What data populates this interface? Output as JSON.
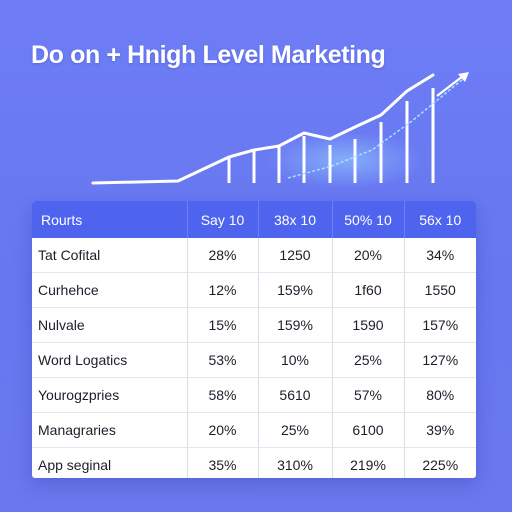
{
  "title": "Do on + Hnigh Level Marketing",
  "colors": {
    "background": "#6b7af2",
    "header": "#4e63ee",
    "line": "#ffffff"
  },
  "table": {
    "columns": [
      "Rourts",
      "Say 10",
      "38x 10",
      "50% 10",
      "56x 10"
    ],
    "rows": [
      [
        "Tat Cofital",
        "28%",
        "1250",
        "20%",
        "34%"
      ],
      [
        "Curhehce",
        "12%",
        "159%",
        "1f60",
        "1550"
      ],
      [
        "Nulvale",
        "15%",
        "159%",
        "1590",
        "157%"
      ],
      [
        "Word Logatics",
        "53%",
        "10%",
        "25%",
        "127%"
      ],
      [
        "Yourogzpries",
        "58%",
        "5610",
        "57%",
        "80%"
      ],
      [
        "Managraries",
        "20%",
        "25%",
        "6100",
        "39%"
      ],
      [
        "App seginal",
        "35%",
        "310%",
        "219%",
        "225%"
      ]
    ]
  }
}
